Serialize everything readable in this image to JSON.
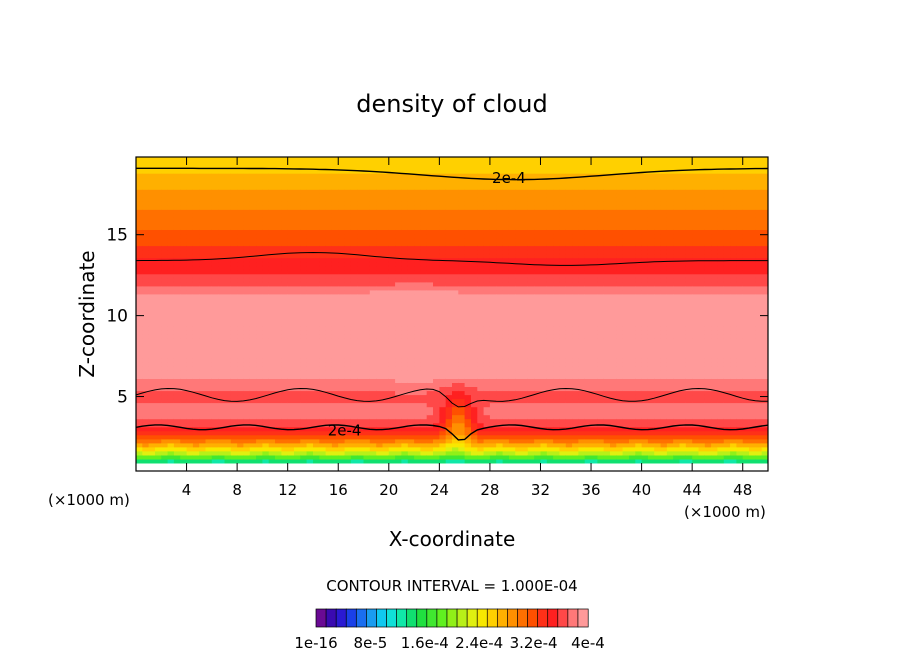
{
  "chart_data": {
    "type": "heatmap",
    "title": "density of cloud",
    "xlabel": "X-coordinate",
    "ylabel": "Z-coordinate",
    "x_unit": "(×1000 m)",
    "xlim": [
      0,
      50
    ],
    "ylim": [
      0.4,
      19.8
    ],
    "x_ticks": [
      "4",
      "8",
      "12",
      "16",
      "20",
      "24",
      "28",
      "32",
      "36",
      "40",
      "44",
      "48"
    ],
    "y_ticks": [
      "5",
      "10",
      "15"
    ],
    "contour_interval_text": "CONTOUR INTERVAL = 1.000E-04",
    "contour_labels": [
      {
        "text": "2e-4",
        "x": 29.5,
        "z": 18.5
      },
      {
        "text": "2e-4",
        "x": 16.5,
        "z": 2.9
      }
    ],
    "colorbar": {
      "n_levels": 27,
      "labels": [
        "1e-16",
        "8e-5",
        "1.6e-4",
        "2.4e-4",
        "3.2e-4",
        "4e-4"
      ],
      "colors": [
        "#6a0a94",
        "#3a0ab0",
        "#2a1ad2",
        "#1a40e8",
        "#1a6ef0",
        "#1a9cf0",
        "#10c8f0",
        "#10e0d8",
        "#10e8a8",
        "#10e070",
        "#20e040",
        "#40e830",
        "#60f020",
        "#90f018",
        "#b8f018",
        "#e0f010",
        "#f8e800",
        "#ffd000",
        "#ffb000",
        "#ff9000",
        "#ff7000",
        "#ff5000",
        "#ff3018",
        "#ff2020",
        "#ff4848",
        "#ff7878",
        "#ff9a9a"
      ]
    }
  }
}
